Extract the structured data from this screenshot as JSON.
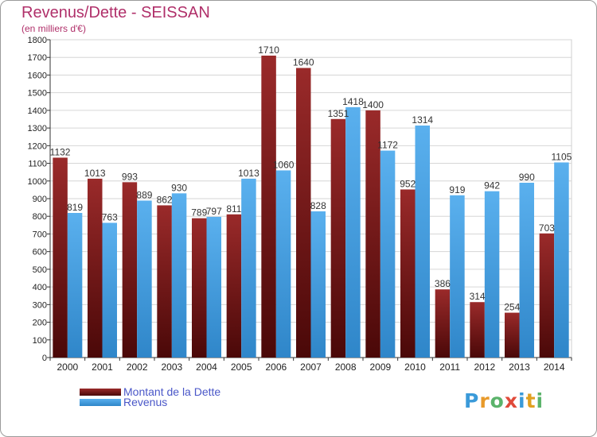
{
  "title": "Revenus/Dette - SEISSAN",
  "subtitle": "(en milliers d'€)",
  "logo": {
    "text": "Proxiti",
    "colors": [
      "#3a9ad9",
      "#e89a2a",
      "#5bb36b",
      "#e04a3a",
      "#3a9ad9",
      "#e0a020",
      "#5bb36b"
    ]
  },
  "chart_data": {
    "type": "bar",
    "categories": [
      "2000",
      "2001",
      "2002",
      "2003",
      "2004",
      "2005",
      "2006",
      "2007",
      "2008",
      "2009",
      "2010",
      "2011",
      "2012",
      "2013",
      "2014"
    ],
    "series": [
      {
        "name": "Montant de la Dette",
        "color": "#8b1c1c",
        "values": [
          1132,
          1013,
          993,
          862,
          789,
          811,
          1710,
          1640,
          1351,
          1400,
          952,
          386,
          314,
          254,
          703
        ],
        "labels": [
          "1132",
          "1013",
          "993",
          "862",
          "789",
          "811",
          "1710",
          "1640",
          "1351",
          "1400",
          "952",
          "386",
          "314",
          "254",
          "703"
        ]
      },
      {
        "name": "Revenus",
        "color": "#4aa3e6",
        "values": [
          819,
          763,
          889,
          930,
          797,
          1013,
          1060,
          828,
          1418,
          1172,
          1314,
          919,
          942,
          990,
          1105
        ],
        "labels": [
          "819",
          "763",
          "889",
          "930",
          "797",
          "1013",
          "1060",
          "828",
          "1418",
          "1172",
          "1314",
          "919",
          "942",
          "990",
          "1105"
        ]
      }
    ],
    "yticks": [
      "0",
      "100",
      "200",
      "300",
      "400",
      "500",
      "600",
      "700",
      "800",
      "900",
      "1000",
      "1100",
      "1200",
      "1300",
      "1400",
      "1500",
      "1600",
      "1700",
      "1800"
    ],
    "ylim": [
      0,
      1800
    ],
    "grid": true,
    "legend": "bottom-left"
  }
}
